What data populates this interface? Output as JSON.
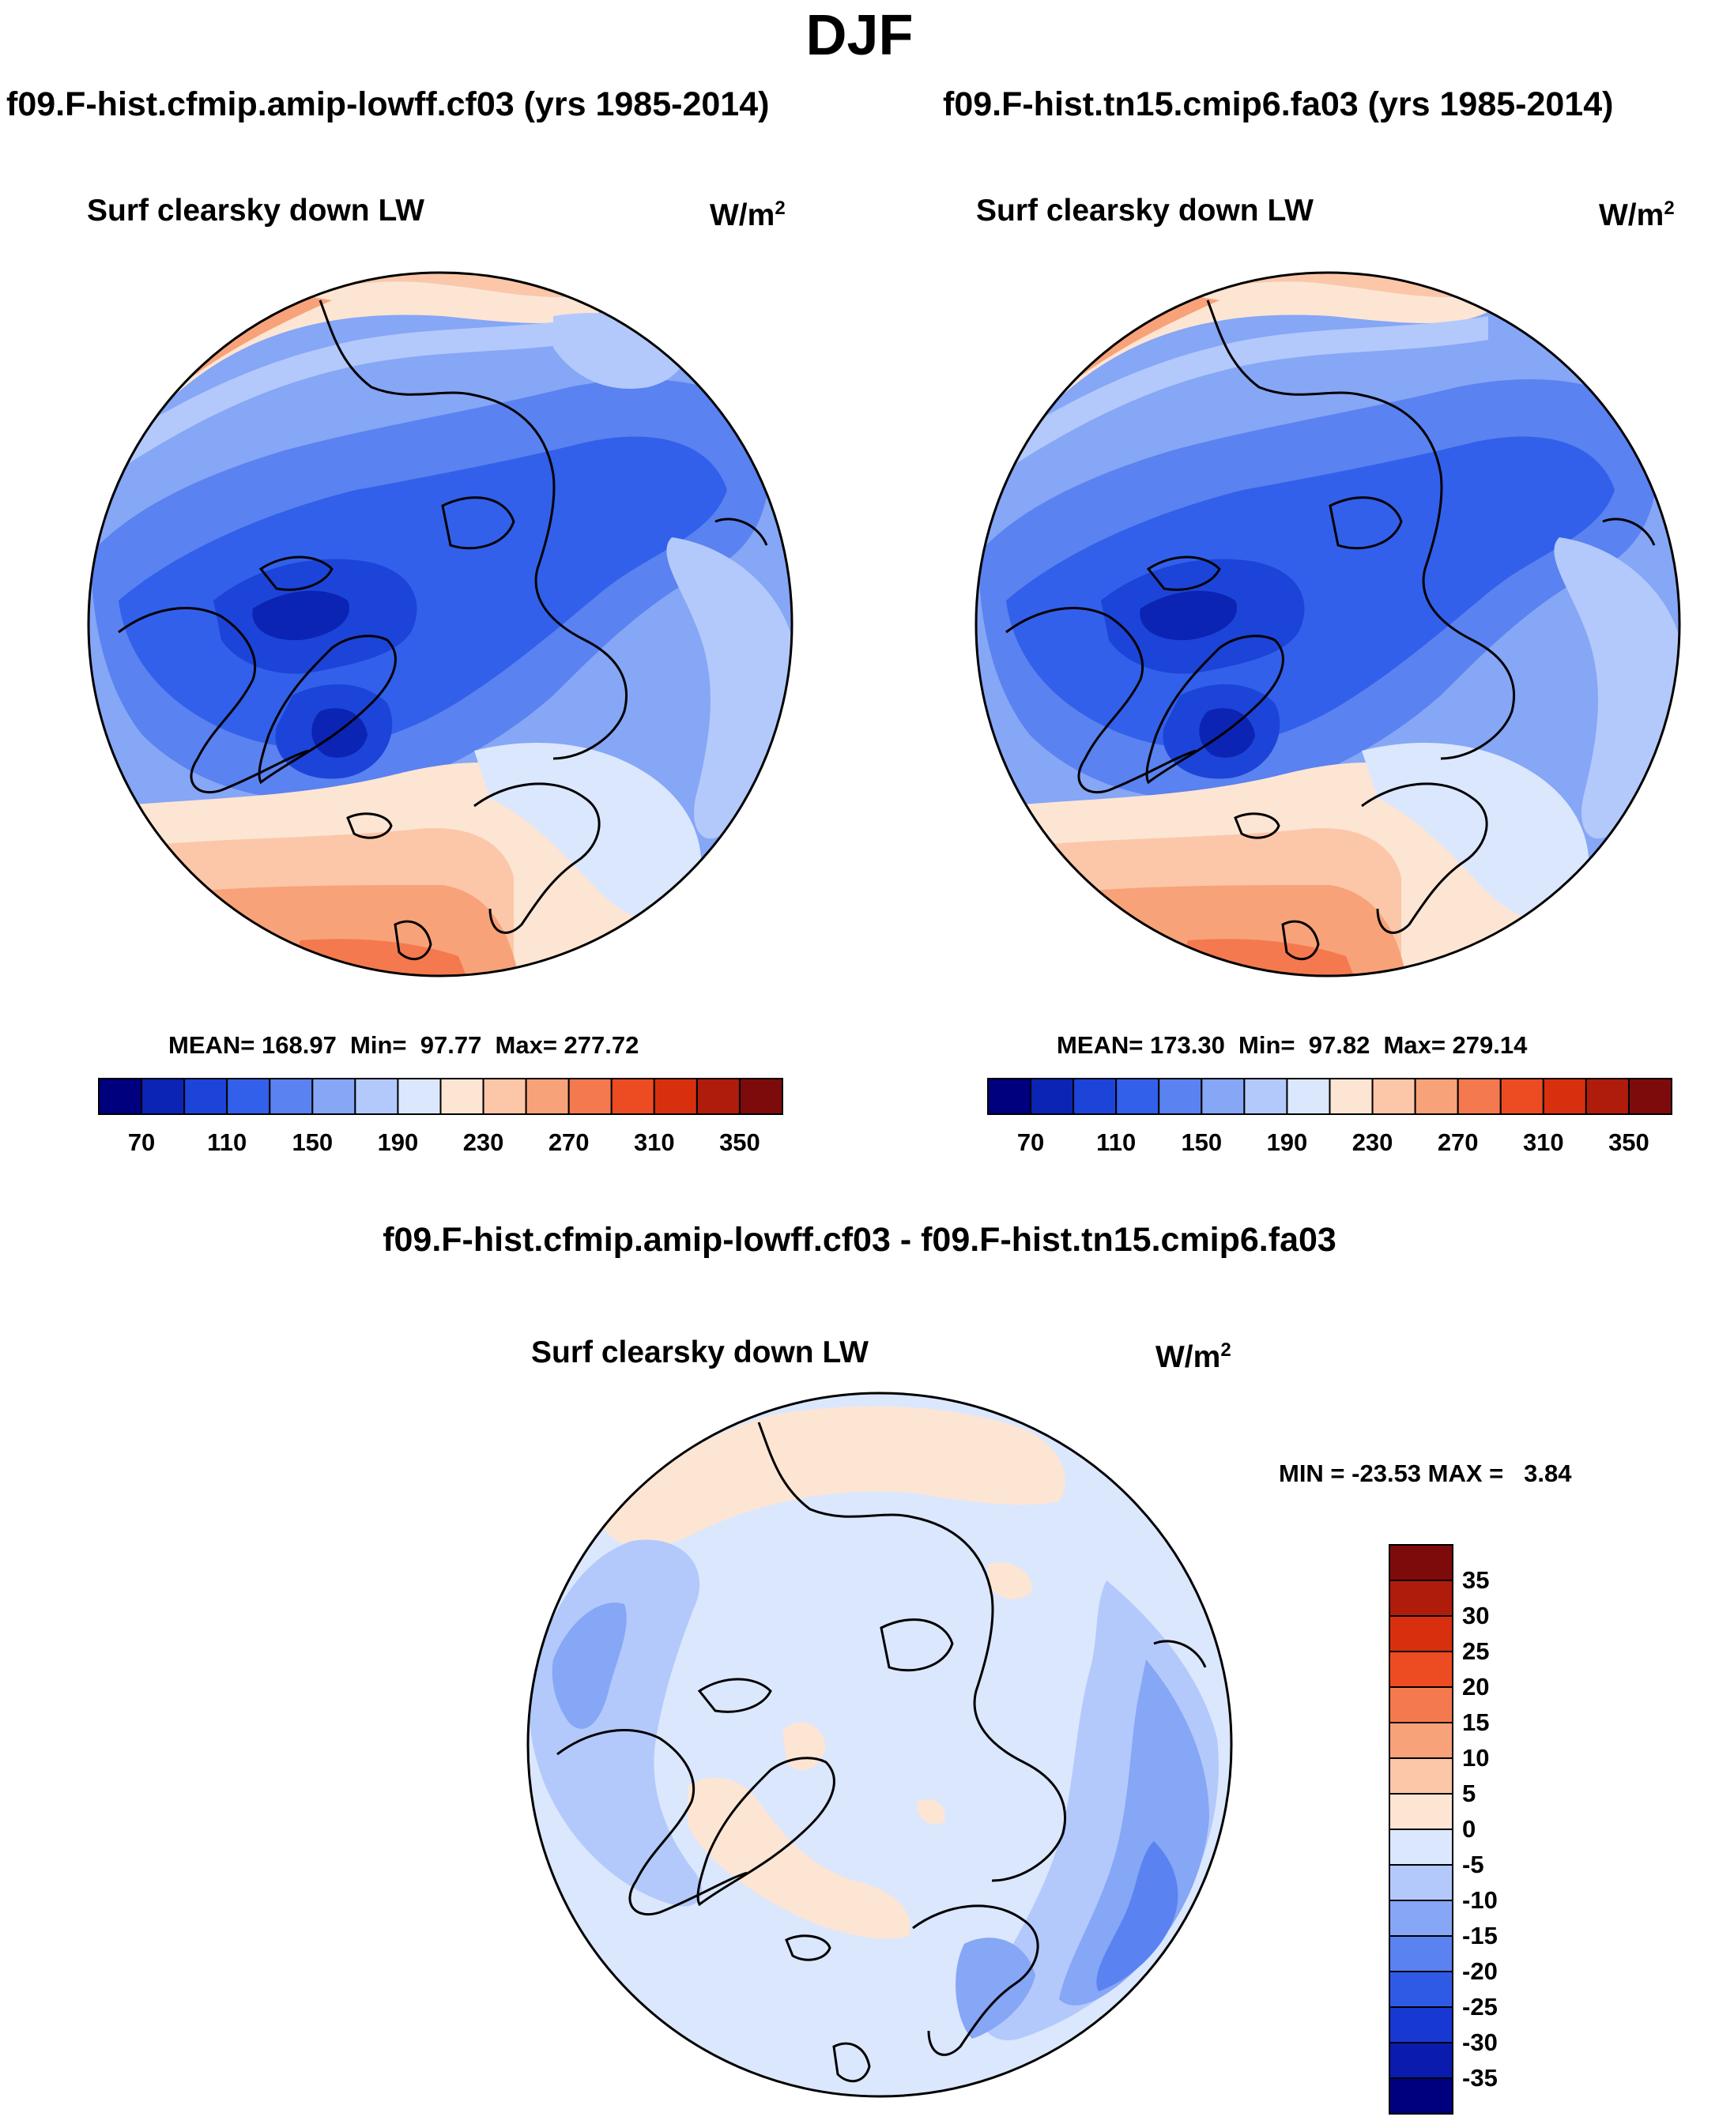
{
  "figure": {
    "season": "DJF",
    "variable": "Surf clearsky down LW",
    "units_base": "W/m",
    "units_exp": "2",
    "colors": {
      "abs_scale": [
        "#00007f",
        "#0b24b4",
        "#1c44d8",
        "#3260ea",
        "#5a82f0",
        "#86a6f6",
        "#b3c9fb",
        "#dbe7fd",
        "#fde5d4",
        "#fbc7a8",
        "#f8a27a",
        "#f5794e",
        "#ed4c22",
        "#d8300f",
        "#b01c0c",
        "#7d0b0b"
      ],
      "diff_scale": [
        "#00007f",
        "#0a1cad",
        "#1838d3",
        "#2f5ae6",
        "#5a82f0",
        "#86a6f6",
        "#b3c9fb",
        "#dbe7fd",
        "#fde5d4",
        "#fbc7a8",
        "#f8a27a",
        "#f5794e",
        "#ed4c22",
        "#d8300f",
        "#b01c0c",
        "#7d0b0b"
      ],
      "coast": "#000000"
    }
  },
  "panels": [
    {
      "id": "left",
      "case_title": "f09.F-hist.cfmip.amip-lowff.cf03 (yrs 1985-2014)",
      "stats": "MEAN= 168.97  Min=  97.77  Max= 277.72",
      "colorbar_labels": [
        "70",
        "110",
        "150",
        "190",
        "230",
        "270",
        "310",
        "350"
      ]
    },
    {
      "id": "right",
      "case_title": "f09.F-hist.tn15.cmip6.fa03 (yrs 1985-2014)",
      "stats": "MEAN= 173.30  Min=  97.82  Max= 279.14",
      "colorbar_labels": [
        "70",
        "110",
        "150",
        "190",
        "230",
        "270",
        "310",
        "350"
      ]
    }
  ],
  "diff_panel": {
    "case_title": "f09.F-hist.cfmip.amip-lowff.cf03 - f09.F-hist.tn15.cmip6.fa03",
    "stats": "MIN = -23.53 MAX =   3.84",
    "colorbar_labels": [
      "35",
      "30",
      "25",
      "20",
      "15",
      "10",
      "5",
      "0",
      "-5",
      "-10",
      "-15",
      "-20",
      "-25",
      "-30",
      "-35"
    ]
  }
}
